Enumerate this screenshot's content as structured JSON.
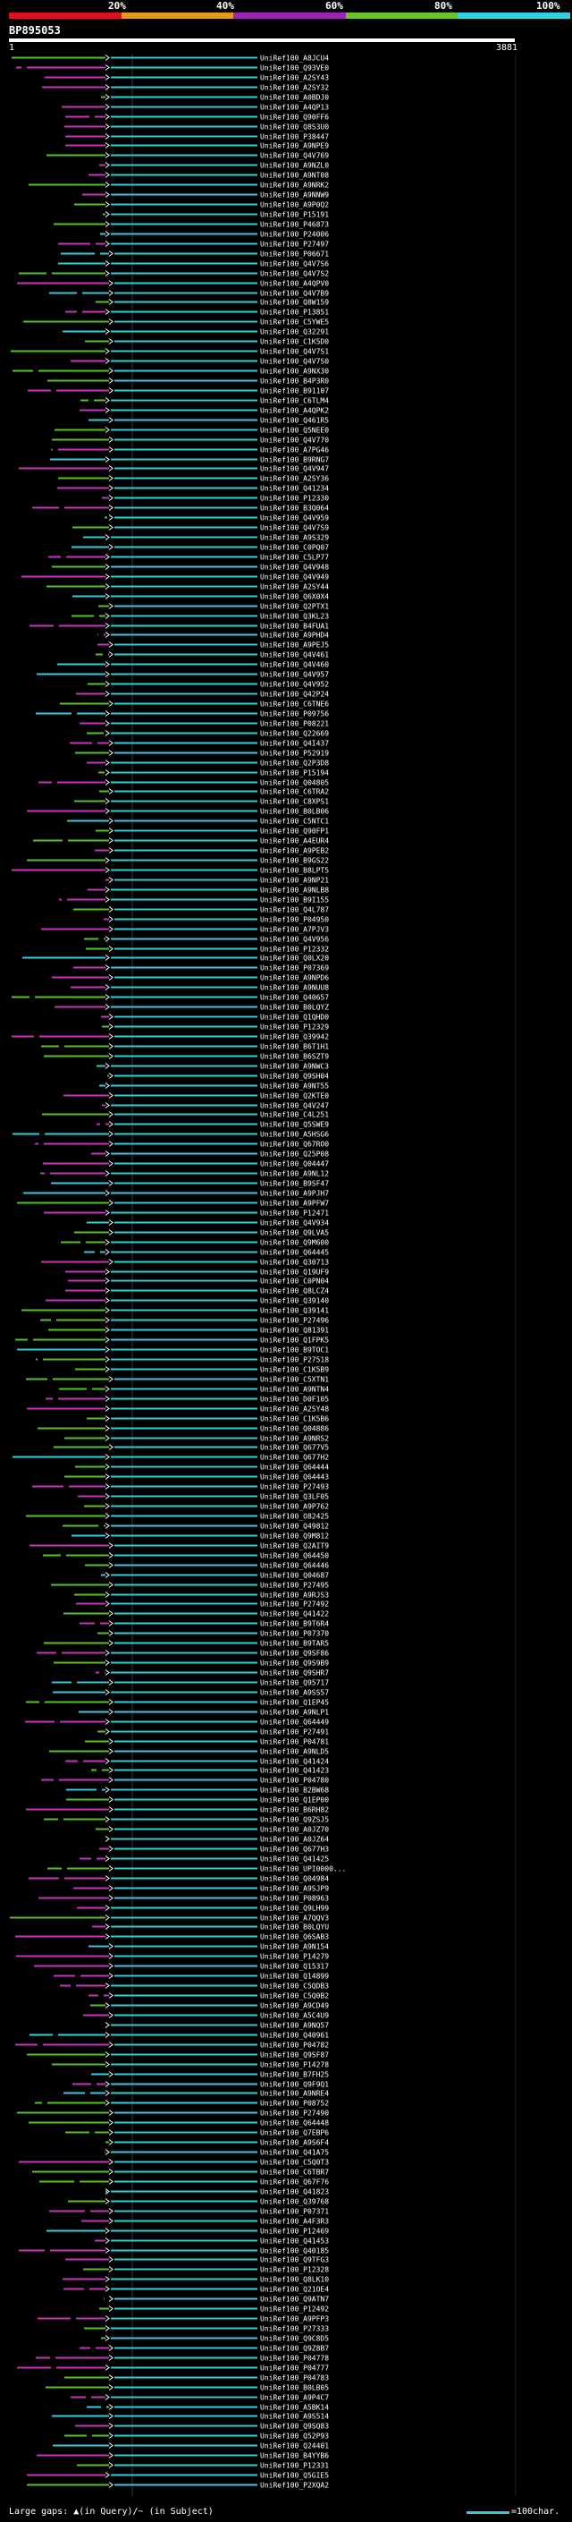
{
  "header": {
    "query_name": "BP895053",
    "query_length": 3881,
    "coord_start": "1",
    "coord_end": "3881",
    "scale_labels": [
      "20%",
      "40%",
      "60%",
      "80%",
      "100%"
    ],
    "scale_colors": [
      "#d9121e",
      "#e39a1b",
      "#9d23b5",
      "#6bc22b",
      "#35cfe0"
    ]
  },
  "hit_colors": {
    "cyan": "#33c9d6",
    "green": "#57c22a",
    "magenta": "#c535b7",
    "arrow": "#ffffff"
  },
  "hits": [
    "UniRef100_A8JCU4",
    "UniRef100_Q93VE0",
    "UniRef100_A2SY43",
    "UniRef100_A2SY32",
    "UniRef100_A0BDJ0",
    "UniRef100_A4QP13",
    "UniRef100_Q90FF6",
    "UniRef100_Q8S3U0",
    "UniRef100_P38447",
    "UniRef100_A9NPE9",
    "UniRef100_Q4V769",
    "UniRef100_A9NZL0",
    "UniRef100_A9NT08",
    "UniRef100_A9NRK2",
    "UniRef100_A9NNW9",
    "UniRef100_A9P0Q2",
    "UniRef100_P15191",
    "UniRef100_P46873",
    "UniRef100_P24006",
    "UniRef100_P27497",
    "UniRef100_P06671",
    "UniRef100_Q4V7S6",
    "UniRef100_Q4V7S2",
    "UniRef100_A4QPV0",
    "UniRef100_Q4V7B9",
    "UniRef100_Q8W159",
    "UniRef100_P13851",
    "UniRef100_C5YWE5",
    "UniRef100_Q32291",
    "UniRef100_C1K5D0",
    "UniRef100_Q4V7S1",
    "UniRef100_Q4V7S0",
    "UniRef100_A9NX30",
    "UniRef100_B4P3R0",
    "UniRef100_B91107",
    "UniRef100_C6TLM4",
    "UniRef100_A4QPK2",
    "UniRef100_Q461R5",
    "UniRef100_Q5NEE0",
    "UniRef100_Q4V770",
    "UniRef100_A7PG46",
    "UniRef100_B9RNG7",
    "UniRef100_Q4V947",
    "UniRef100_A2SY36",
    "UniRef100_Q41234",
    "UniRef100_P12330",
    "UniRef100_B3Q064",
    "UniRef100_Q4V959",
    "UniRef100_Q4V7S9",
    "UniRef100_A9S329",
    "UniRef100_C0PQ07",
    "UniRef100_C5LP77",
    "UniRef100_Q4V948",
    "UniRef100_Q4V949",
    "UniRef100_A2SY44",
    "UniRef100_Q6X0X4",
    "UniRef100_Q2PTX1",
    "UniRef100_Q3KL23",
    "UniRef100_B4FUA1",
    "UniRef100_A9PHD4",
    "UniRef100_A9PEJ5",
    "UniRef100_Q4V461",
    "UniRef100_Q4V460",
    "UniRef100_Q4V957",
    "UniRef100_Q4V952",
    "UniRef100_Q42P24",
    "UniRef100_C6TNE6",
    "UniRef100_P09756",
    "UniRef100_P08221",
    "UniRef100_Q22669",
    "UniRef100_Q4I437",
    "UniRef100_P52919",
    "UniRef100_Q2P3D8",
    "UniRef100_P15194",
    "UniRef100_Q04805",
    "UniRef100_C6TRA2",
    "UniRef100_C8XPS1",
    "UniRef100_B0LB06",
    "UniRef100_C5NTC1",
    "UniRef100_Q90FP1",
    "UniRef100_A4EUR4",
    "UniRef100_A9PEB2",
    "UniRef100_B9GS22",
    "UniRef100_B8LPT5",
    "UniRef100_A9NP21",
    "UniRef100_A9NLB8",
    "UniRef100_B9I155",
    "UniRef100_Q4L787",
    "UniRef100_P04950",
    "UniRef100_A7PJV3",
    "UniRef100_Q4V956",
    "UniRef100_P12332",
    "UniRef100_Q0LX20",
    "UniRef100_P07369",
    "UniRef100_A9NPD6",
    "UniRef100_A9NUU8",
    "UniRef100_Q40657",
    "UniRef100_B0LQYZ",
    "UniRef100_Q1QHD0",
    "UniRef100_P12329",
    "UniRef100_Q39942",
    "UniRef100_B6T1H1",
    "UniRef100_B6SZT9",
    "UniRef100_A9NWC3",
    "UniRef100_Q9SH04",
    "UniRef100_A9NT55",
    "UniRef100_Q2KTE0",
    "UniRef100_Q4V247",
    "UniRef100_C4L251",
    "UniRef100_Q5SWE9",
    "UniRef100_A5HSG6",
    "UniRef100_Q67RO0",
    "UniRef100_Q25P08",
    "UniRef100_Q04447",
    "UniRef100_A9NL12",
    "UniRef100_B9SF47",
    "UniRef100_A9PJH7",
    "UniRef100_A9PFW7",
    "UniRef100_P12471",
    "UniRef100_Q4V934",
    "UniRef100_Q9LVA5",
    "UniRef100_Q9M600",
    "UniRef100_Q64445",
    "UniRef100_Q30713",
    "UniRef100_Q19UF9",
    "UniRef100_C0PN04",
    "UniRef100_Q8LCZ4",
    "UniRef100_Q39140",
    "UniRef100_Q39141",
    "UniRef100_P27496",
    "UniRef100_Q81391",
    "UniRef100_Q1FPK5",
    "UniRef100_B9TOC1",
    "UniRef100_P27518",
    "UniRef100_C1K5B9",
    "UniRef100_C5XTN1",
    "UniRef100_A9NTN4",
    "UniRef100_D0F105",
    "UniRef100_A2SY48",
    "UniRef100_C1K5B6",
    "UniRef100_Q04886",
    "UniRef100_A9NRS2",
    "UniRef100_Q677V5",
    "UniRef100_Q677H2",
    "UniRef100_Q64444",
    "UniRef100_Q64443",
    "UniRef100_P27493",
    "UniRef100_Q3LF05",
    "UniRef100_A9P762",
    "UniRef100_O82425",
    "UniRef100_Q49812",
    "UniRef100_Q9M812",
    "UniRef100_Q2AIT9",
    "UniRef100_Q64450",
    "UniRef100_Q64446",
    "UniRef100_Q04687",
    "UniRef100_P27495",
    "UniRef100_A9RJS3",
    "UniRef100_P27492",
    "UniRef100_Q41422",
    "UniRef100_B9T6R4",
    "UniRef100_P07370",
    "UniRef100_B9TAR5",
    "UniRef100_Q9SF86",
    "UniRef100_Q9S9B9",
    "UniRef100_Q9SHR7",
    "UniRef100_Q95717",
    "UniRef100_A9SS57",
    "UniRef100_Q1EP45",
    "UniRef100_A9NLP1",
    "UniRef100_Q64449",
    "UniRef100_P27491",
    "UniRef100_P04781",
    "UniRef100_A9NLD5",
    "UniRef100_Q41424",
    "UniRef100_Q41423",
    "UniRef100_P04780",
    "UniRef100_B2BW68",
    "UniRef100_Q1EP00",
    "UniRef100_B6RH82",
    "UniRef100_Q9ZSJ5",
    "UniRef100_A0JZ70",
    "UniRef100_A0JZ64",
    "UniRef100_Q677H3",
    "UniRef100_Q41425",
    "UniRef100_UPI0000...",
    "UniRef100_Q04984",
    "UniRef100_A9SJP9",
    "UniRef100_P08963",
    "UniRef100_Q9LH99",
    "UniRef100_A7QQV3",
    "UniRef100_B0LQYU",
    "UniRef100_Q6SAB3",
    "UniRef100_A9N154",
    "UniRef100_P14279",
    "UniRef100_Q15317",
    "UniRef100_Q14899",
    "UniRef100_C5QDB3",
    "UniRef100_C5Q0B2",
    "UniRef100_A9CD49",
    "UniRef100_A5C4U9",
    "UniRef100_A9NQ57",
    "UniRef100_Q40961",
    "UniRef100_P04782",
    "UniRef100_Q9SF87",
    "UniRef100_P14278",
    "UniRef100_B7FH25",
    "UniRef100_Q9F9Q1",
    "UniRef100_A9NRE4",
    "UniRef100_P08752",
    "UniRef100_P27490",
    "UniRef100_Q64448",
    "UniRef100_Q7EBP6",
    "UniRef100_A9S6F4",
    "UniRef100_Q41A75",
    "UniRef100_C5Q0T3",
    "UniRef100_C6TBR7",
    "UniRef100_Q67F76",
    "UniRef100_Q41823",
    "UniRef100_Q39768",
    "UniRef100_P07371",
    "UniRef100_A4F3R3",
    "UniRef100_P12469",
    "UniRef100_Q41453",
    "UniRef100_Q40185",
    "UniRef100_Q9TFG3",
    "UniRef100_P12328",
    "UniRef100_Q8LK10",
    "UniRef100_Q21OE4",
    "UniRef100_Q9ATN7",
    "UniRef100_P12492",
    "UniRef100_A9PFP3",
    "UniRef100_P27333",
    "UniRef100_Q9C8D5",
    "UniRef100_Q9Z8B7",
    "UniRef100_P04778",
    "UniRef100_P04777",
    "UniRef100_P04783",
    "UniRef100_B0LB05",
    "UniRef100_A9P4C7",
    "UniRef100_A5BK14",
    "UniRef100_A9S514",
    "UniRef100_Q9SQ83",
    "UniRef100_Q52P93",
    "UniRef100_Q24401",
    "UniRef100_B4YYB6",
    "UniRef100_P12331",
    "UniRef100_Q5GIE5",
    "UniRef100_P2XQA2"
  ],
  "legend": {
    "large_gaps": "Large gaps:",
    "gap_query": "(in Query)",
    "gap_subject": "/~ (in Subject)",
    "scale": "=100char."
  }
}
